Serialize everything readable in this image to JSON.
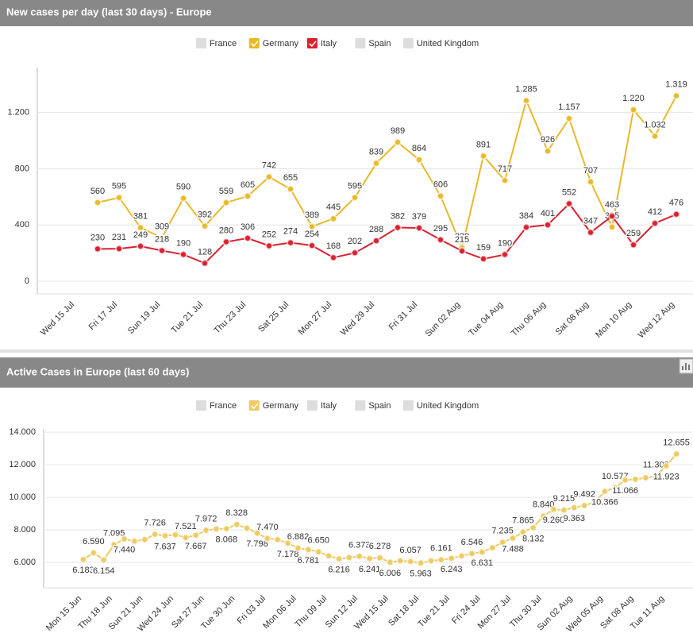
{
  "charts": [
    {
      "chart_data": {
        "type": "line",
        "title": "New cases per day (last 30 days) - Europe",
        "categories": [
          "Wed 15 Jul",
          null,
          "Fri 17 Jul",
          null,
          "Sun 19 Jul",
          null,
          "Tue 21 Jul",
          null,
          "Thu 23 Jul",
          null,
          "Sat 25 Jul",
          null,
          "Mon 27 Jul",
          null,
          "Wed 29 Jul",
          null,
          "Fri 31 Jul",
          null,
          "Sun 02 Aug",
          null,
          "Tue 04 Aug",
          null,
          "Thu 06 Aug",
          null,
          "Sat 08 Aug",
          null,
          "Mon 10 Aug",
          null,
          "Wed 12 Aug"
        ],
        "series": [
          {
            "name": "France",
            "visible": false
          },
          {
            "name": "Germany",
            "visible": true,
            "color": "#e8b92a",
            "values": [
              null,
              560,
              595,
              381,
              309,
              590,
              392,
              559,
              605,
              742,
              655,
              389,
              445,
              595,
              839,
              989,
              864,
              606,
              238,
              891,
              717,
              1285,
              926,
              1157,
              707,
              385,
              1220,
              1032,
              1319
            ],
            "value_labels": [
              null,
              "560",
              "595",
              "381",
              "309",
              "590",
              "392",
              "559",
              "605",
              "742",
              "655",
              "389",
              "445",
              "595",
              "839",
              "989",
              "864",
              "606",
              "238",
              "891",
              "717",
              "1.285",
              "926",
              "1.157",
              "707",
              "385",
              "1.220",
              "1.032",
              "1.319"
            ]
          },
          {
            "name": "Italy",
            "visible": true,
            "color": "#d9212f",
            "values": [
              null,
              230,
              231,
              249,
              218,
              190,
              128,
              280,
              306,
              252,
              274,
              254,
              168,
              202,
              288,
              382,
              379,
              295,
              215,
              159,
              190,
              384,
              401,
              552,
              347,
              463,
              259,
              412,
              476
            ],
            "value_labels": [
              null,
              "230",
              "231",
              "249",
              "218",
              "190",
              "128",
              "280",
              "306",
              "252",
              "274",
              "254",
              "168",
              "202",
              "288",
              "382",
              "379",
              "295",
              "215",
              "159",
              "190",
              "384",
              "401",
              "552",
              "347",
              "463",
              "259",
              "412",
              "476"
            ]
          },
          {
            "name": "Spain",
            "visible": false
          },
          {
            "name": "United Kingdom",
            "visible": false
          }
        ],
        "ylim": [
          -90,
          1520
        ],
        "yticks": [
          0,
          400,
          800,
          {
            "value": 1200,
            "label": "1.200"
          }
        ],
        "grid": true
      }
    },
    {
      "chart_data": {
        "type": "line",
        "title": "Active Cases in Europe (last 60 days)",
        "categories": [
          "Mon 15 Jun",
          null,
          null,
          "Thu 18 Jun",
          null,
          null,
          "Sun 21 Jun",
          null,
          null,
          "Wed 24 Jun",
          null,
          null,
          "Sat 27 Jun",
          null,
          null,
          "Tue 30 Jun",
          null,
          null,
          "Fri 03 Jul",
          null,
          null,
          "Mon 06 Jul",
          null,
          null,
          "Thu 09 Jul",
          null,
          null,
          "Sun 12 Jul",
          null,
          null,
          "Wed 15 Jul",
          null,
          null,
          "Sat 18 Jul",
          null,
          null,
          "Tue 21 Jul",
          null,
          null,
          "Fri 24 Jul",
          null,
          null,
          "Mon 27 Jul",
          null,
          null,
          "Thu 30 Jul",
          null,
          null,
          "Sun 02 Aug",
          null,
          null,
          "Wed 05 Aug",
          null,
          null,
          "Sat 08 Aug",
          null,
          null,
          "Tue 11 Aug",
          null
        ],
        "series": [
          {
            "name": "France",
            "visible": false
          },
          {
            "name": "Germany",
            "visible": true,
            "color": "#eccb63",
            "values": [
              6183,
              6590,
              6154,
              7095,
              7440,
              7300,
              7400,
              7726,
              7637,
              7700,
              7521,
              7667,
              7972,
              8050,
              8068,
              8328,
              8100,
              7798,
              7470,
              7400,
              7178,
              6882,
              6781,
              6650,
              6400,
              6216,
              6300,
              6373,
              6241,
              6278,
              6006,
              6100,
              6057,
              5963,
              6100,
              6161,
              6243,
              6400,
              6546,
              6631,
              6900,
              7235,
              7488,
              7865,
              8132,
              8840,
              9260,
              9215,
              9363,
              9492,
              9700,
              10366,
              10577,
              11066,
              11100,
              11200,
              11303,
              11923,
              12655
            ],
            "value_labels": [
              "6.183",
              "6.590",
              "6.154",
              "7.095",
              "7.440",
              null,
              null,
              "7.726",
              "7.637",
              null,
              "7.521",
              "7.667",
              "7.972",
              null,
              "8.068",
              "8.328",
              null,
              "7.798",
              "7.470",
              null,
              "7.178",
              "6.882",
              "6.781",
              "6.650",
              null,
              "6.216",
              null,
              "6.373",
              "6.241",
              "6.278",
              "6.006",
              null,
              "6.057",
              "5.963",
              null,
              "6.161",
              "6.243",
              null,
              "6.546",
              "6.631",
              null,
              "7.235",
              "7.488",
              "7.865",
              "8.132",
              "8.840",
              "9.260",
              "9.215",
              "9.363",
              "9.492",
              null,
              "10.366",
              "10.577",
              "11.066",
              null,
              null,
              "11.303",
              "11.923",
              "12.655"
            ]
          },
          {
            "name": "Italy",
            "visible": false
          },
          {
            "name": "Spain",
            "visible": false
          },
          {
            "name": "United Kingdom",
            "visible": false
          }
        ],
        "ylim": [
          4440,
          14200
        ],
        "yticks": [
          {
            "value": 6000,
            "label": "6.000"
          },
          {
            "value": 8000,
            "label": "8.000"
          },
          {
            "value": 10000,
            "label": "10.000"
          },
          {
            "value": 12000,
            "label": "12.000"
          },
          {
            "value": 14000,
            "label": "14.000"
          }
        ],
        "grid": true
      }
    }
  ]
}
